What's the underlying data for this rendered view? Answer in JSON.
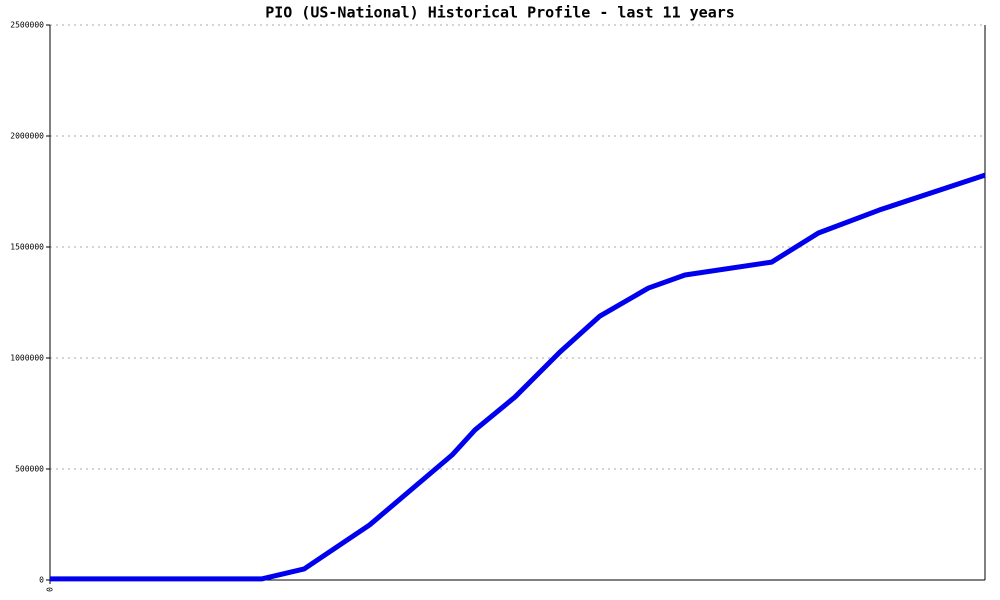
{
  "chart_data": {
    "type": "line",
    "title": "PIO (US-National) Historical Profile - last 11 years",
    "x": [
      0,
      2.49,
      2.99,
      3.76,
      4.73,
      5.0,
      5.47,
      6.0,
      6.47,
      7.04,
      7.47,
      8.49,
      9.04,
      9.76,
      11.0
    ],
    "values": [
      5000,
      5000,
      50000,
      248000,
      563000,
      676000,
      824000,
      1027000,
      1189000,
      1315000,
      1374000,
      1432000,
      1563000,
      1667000,
      1824000
    ],
    "color": "#0000ee",
    "xlim": [
      0,
      11
    ],
    "xticks": [
      0
    ],
    "ylim": [
      0,
      2500000
    ],
    "yticks": [
      0,
      500000,
      1000000,
      1500000,
      2000000,
      2500000
    ],
    "grid": true
  }
}
